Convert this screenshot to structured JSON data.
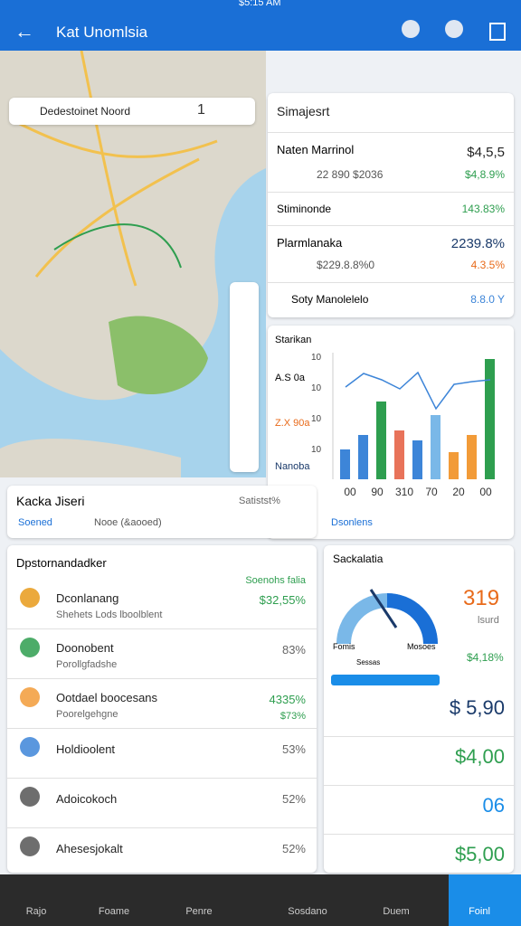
{
  "status": {
    "time": "$5:15 AM"
  },
  "header": {
    "title": "Kat Unomlsia"
  },
  "map": {
    "search": "Dedestoinet Noord",
    "count": "1"
  },
  "summary": {
    "title": "Simajesrt",
    "rows": [
      {
        "name": "Naten Marrinol",
        "value": "$4,5,5",
        "sub": "22 890 $2036",
        "change": "$4,8.9%"
      },
      {
        "name": "Stiminonde",
        "change": "143.83%"
      },
      {
        "name": "Plarmlanaka",
        "value": "2239.8%",
        "sub": "$229.8.8%0",
        "change": "4.3.5%"
      },
      {
        "name": "Soty  Manolelelo",
        "change": "8.8.0 Y"
      }
    ]
  },
  "sales_chart": {
    "type": "bar",
    "title": "Starikan",
    "labels": [
      "A.S 0a",
      "Z.X 90a",
      "Nanoba"
    ],
    "yticks": [
      "10",
      "10",
      "10",
      "10"
    ],
    "categories": [
      "00",
      "90",
      "310",
      "70",
      "20",
      "00"
    ],
    "ylim": [
      0,
      140
    ],
    "bars": [
      {
        "value": 33,
        "color": "#3d85d8"
      },
      {
        "value": 49,
        "color": "#3d85d8"
      },
      {
        "value": 86,
        "color": "#2e9e4f"
      },
      {
        "value": 54,
        "color": "#e8735a"
      },
      {
        "value": 43,
        "color": "#3d85d8"
      },
      {
        "value": 71,
        "color": "#7ab8e8"
      },
      {
        "value": 30,
        "color": "#f29b38"
      },
      {
        "value": 49,
        "color": "#f29b38"
      },
      {
        "value": 133,
        "color": "#2e9e4f"
      }
    ],
    "line": [
      102,
      117,
      110,
      100,
      118,
      78,
      105,
      108,
      110
    ],
    "line_color": "#3d85d8",
    "footer": "Dsonlens"
  },
  "search_card": {
    "title": "Kacka Jiseri",
    "link": "Satistst%",
    "tabs": [
      "Soened",
      "Nooe (&aooed)"
    ]
  },
  "list": {
    "title": "Dpstornandadker",
    "header": "Soenohs falia",
    "items": [
      {
        "name": "Dconlanang",
        "sub": "Shehets Lods lboolblent",
        "value": "$32,55%"
      },
      {
        "name": "Doonobent",
        "sub": "Porollgfadshe",
        "value": "83%"
      },
      {
        "name": "Ootdael boocesans",
        "sub": "Poorelgehgne",
        "value": "4335%",
        "value2": "$73%"
      },
      {
        "name": "Holdioolent",
        "value": "53%"
      },
      {
        "name": "Adoicokoch",
        "value": "52%"
      },
      {
        "name": "Ahesesjokalt",
        "value": "52%"
      }
    ]
  },
  "gauge_card": {
    "title": "Sackalatia",
    "value": "319",
    "unit": "lsurd",
    "left_label": "Fomis",
    "right_label": "Mosoes",
    "center_label": "Sessas",
    "change": "$4,18%",
    "stats": [
      "$ 5,90",
      "$4,00",
      "06",
      "$5,00"
    ]
  },
  "nav": [
    "Rajo",
    "Foame",
    "Penre",
    "Sosdano",
    "Duem",
    "Foinl"
  ]
}
